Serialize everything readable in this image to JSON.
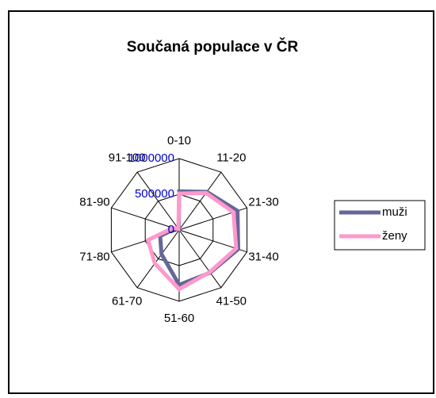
{
  "chart_data": {
    "type": "radar",
    "title": "Součaná populace v ČR",
    "categories": [
      "0-10",
      "11-20",
      "21-30",
      "31-40",
      "41-50",
      "51-60",
      "61-70",
      "71-80",
      "81-90",
      "91-100"
    ],
    "series": [
      {
        "name": "muži",
        "color": "#666699",
        "values": [
          540000,
          660000,
          860000,
          870000,
          740000,
          770000,
          420000,
          280000,
          60000,
          10000
        ]
      },
      {
        "name": "ženy",
        "color": "#ff99cc",
        "values": [
          510000,
          640000,
          800000,
          840000,
          730000,
          830000,
          580000,
          460000,
          90000,
          20000
        ]
      }
    ],
    "ylim": [
      0,
      1000000
    ],
    "yticks": [
      0,
      500000,
      1000000
    ],
    "grid": true,
    "legend": "right"
  }
}
